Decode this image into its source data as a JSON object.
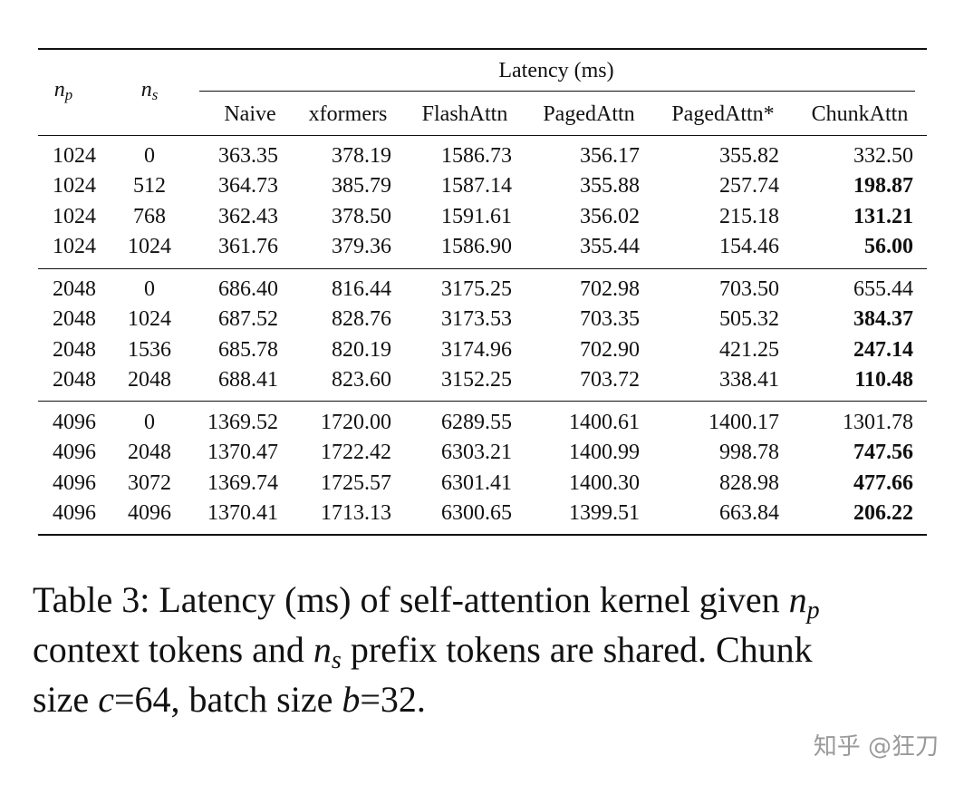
{
  "table": {
    "super_header": "Latency (ms)",
    "headers": [
      {
        "math": "n",
        "sub": "p"
      },
      {
        "math": "n",
        "sub": "s"
      },
      "Naive",
      "xformers",
      "FlashAttn",
      "PagedAttn",
      "PagedAttn*",
      "ChunkAttn"
    ],
    "groups": [
      [
        {
          "cells": [
            "1024",
            "0",
            "363.35",
            "378.19",
            "1586.73",
            "356.17",
            "355.82",
            "332.50"
          ],
          "bold_last": false
        },
        {
          "cells": [
            "1024",
            "512",
            "364.73",
            "385.79",
            "1587.14",
            "355.88",
            "257.74",
            "198.87"
          ],
          "bold_last": true
        },
        {
          "cells": [
            "1024",
            "768",
            "362.43",
            "378.50",
            "1591.61",
            "356.02",
            "215.18",
            "131.21"
          ],
          "bold_last": true
        },
        {
          "cells": [
            "1024",
            "1024",
            "361.76",
            "379.36",
            "1586.90",
            "355.44",
            "154.46",
            "56.00"
          ],
          "bold_last": true
        }
      ],
      [
        {
          "cells": [
            "2048",
            "0",
            "686.40",
            "816.44",
            "3175.25",
            "702.98",
            "703.50",
            "655.44"
          ],
          "bold_last": false
        },
        {
          "cells": [
            "2048",
            "1024",
            "687.52",
            "828.76",
            "3173.53",
            "703.35",
            "505.32",
            "384.37"
          ],
          "bold_last": true
        },
        {
          "cells": [
            "2048",
            "1536",
            "685.78",
            "820.19",
            "3174.96",
            "702.90",
            "421.25",
            "247.14"
          ],
          "bold_last": true
        },
        {
          "cells": [
            "2048",
            "2048",
            "688.41",
            "823.60",
            "3152.25",
            "703.72",
            "338.41",
            "110.48"
          ],
          "bold_last": true
        }
      ],
      [
        {
          "cells": [
            "4096",
            "0",
            "1369.52",
            "1720.00",
            "6289.55",
            "1400.61",
            "1400.17",
            "1301.78"
          ],
          "bold_last": false
        },
        {
          "cells": [
            "4096",
            "2048",
            "1370.47",
            "1722.42",
            "6303.21",
            "1400.99",
            "998.78",
            "747.56"
          ],
          "bold_last": true
        },
        {
          "cells": [
            "4096",
            "3072",
            "1369.74",
            "1725.57",
            "6301.41",
            "1400.30",
            "828.98",
            "477.66"
          ],
          "bold_last": true
        },
        {
          "cells": [
            "4096",
            "4096",
            "1370.41",
            "1713.13",
            "6300.65",
            "1399.51",
            "663.84",
            "206.22"
          ],
          "bold_last": true
        }
      ]
    ]
  },
  "caption": {
    "lines": [
      [
        "Table 3: Latency (ms) of self-attention kernel given ",
        {
          "math": "n",
          "sub": "p"
        }
      ],
      [
        "context tokens and ",
        {
          "math": "n",
          "sub": "s"
        },
        " prefix tokens are shared. Chunk"
      ],
      [
        "size ",
        {
          "math": "c"
        },
        "=64, batch size ",
        {
          "math": "b"
        },
        "=32."
      ]
    ]
  },
  "watermark": "知乎 @狂刀"
}
